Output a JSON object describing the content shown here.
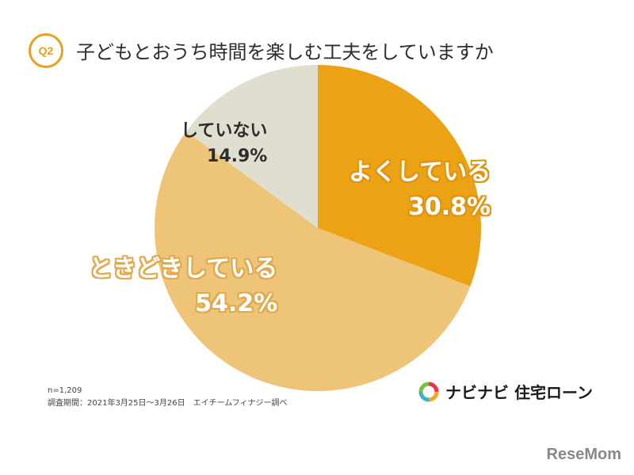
{
  "header": {
    "badge": "Q2",
    "title": "子どもとおうち時間を楽しむ工夫をしていますか"
  },
  "chart_data": {
    "type": "pie",
    "slices": [
      {
        "label": "よくしている",
        "value": 30.8,
        "value_label": "30.8%",
        "color": "#eba315"
      },
      {
        "label": "ときどきしている",
        "value": 54.2,
        "value_label": "54.2%",
        "color": "#edc478"
      },
      {
        "label": "していない",
        "value": 14.9,
        "value_label": "14.9%",
        "color": "#e0decf"
      }
    ],
    "start": "12 o'clock",
    "direction": "clockwise"
  },
  "footnote": {
    "n": "n=1,209",
    "period": "調査期間：2021年3月25日〜3月26日　エイチームフィナジー調べ"
  },
  "logo": {
    "text": "ナビナビ 住宅ローン",
    "colors": [
      "#e8334a",
      "#f5a623",
      "#3bb3c3",
      "#7ac143"
    ]
  },
  "watermark": "ReseMom"
}
